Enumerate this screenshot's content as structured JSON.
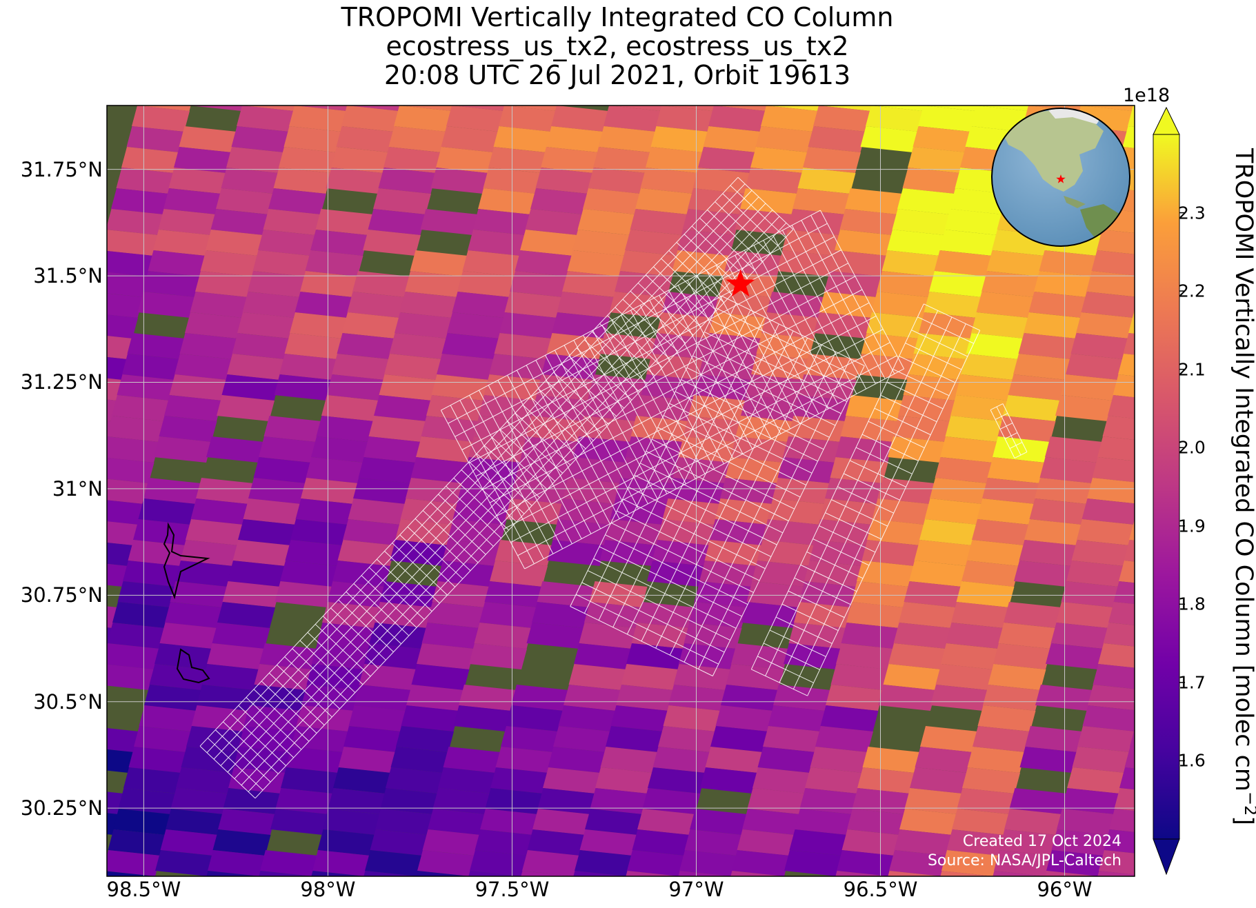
{
  "title": {
    "line1": "TROPOMI Vertically Integrated CO Column",
    "line2": "ecostress_us_tx2, ecostress_us_tx2",
    "line3": "20:08 UTC 26 Jul 2021, Orbit 19613"
  },
  "map": {
    "lon_range": [
      -98.6,
      -95.81
    ],
    "lat_range": [
      30.09,
      31.9
    ],
    "lon_ticks": [
      {
        "value": -98.5,
        "label": "98.5°W"
      },
      {
        "value": -98.0,
        "label": "98°W"
      },
      {
        "value": -97.5,
        "label": "97.5°W"
      },
      {
        "value": -97.0,
        "label": "97°W"
      },
      {
        "value": -96.5,
        "label": "96.5°W"
      },
      {
        "value": -96.0,
        "label": "96°W"
      }
    ],
    "lat_ticks": [
      {
        "value": 31.75,
        "label": "31.75°N"
      },
      {
        "value": 31.5,
        "label": "31.5°N"
      },
      {
        "value": 31.25,
        "label": "31.25°N"
      },
      {
        "value": 31.0,
        "label": "31°N"
      },
      {
        "value": 30.75,
        "label": "30.75°N"
      },
      {
        "value": 30.5,
        "label": "30.5°N"
      },
      {
        "value": 30.25,
        "label": "30.25°N"
      }
    ],
    "gridlines": true,
    "site_marker": {
      "lon": -96.88,
      "lat": 31.48,
      "symbol": "star",
      "color": "#ff0000"
    },
    "ecostress_footprint_color": "#ffffff",
    "basemap": "satellite imagery",
    "inset_globe": {
      "position": "top-right",
      "marker": "red star",
      "region": "North America"
    }
  },
  "colorbar": {
    "exponent": "1e18",
    "label": "TROPOMI Vertically Integrated CO Column [molec cm",
    "label_superscript": "−2",
    "label_end": "]",
    "colormap": "plasma",
    "range": [
      1.5,
      2.4
    ],
    "ticks": [
      "1.6",
      "1.7",
      "1.8",
      "1.9",
      "2.0",
      "2.1",
      "2.2",
      "2.3"
    ],
    "extend": "both"
  },
  "credit": {
    "line1": "Created 17 Oct 2024",
    "line2": "Source: NASA/JPL-Caltech"
  }
}
